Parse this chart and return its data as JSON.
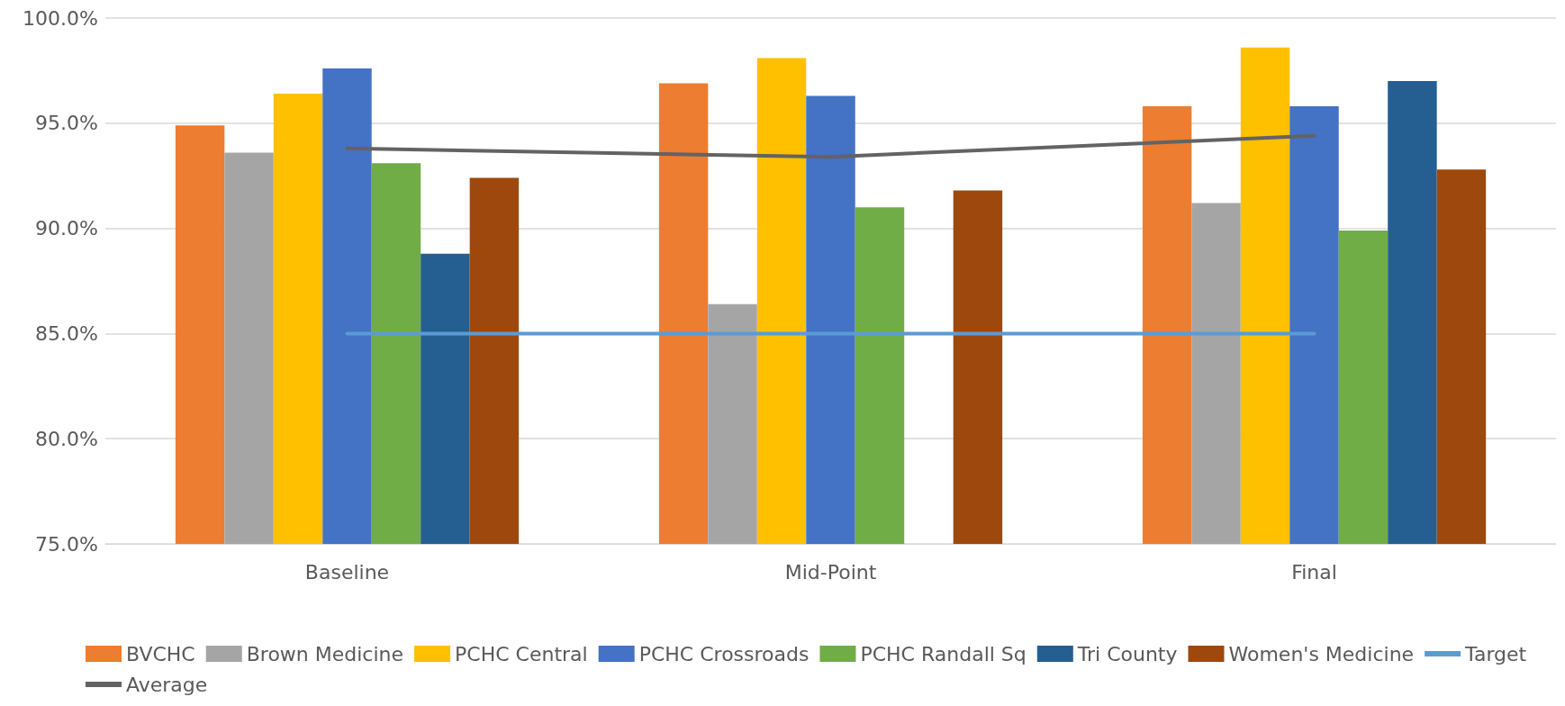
{
  "chart_data": {
    "type": "bar",
    "categories": [
      "Baseline",
      "Mid-Point",
      "Final"
    ],
    "series": [
      {
        "name": "BVCHC",
        "color": "#ed7d31",
        "values": [
          94.9,
          96.9,
          95.8
        ]
      },
      {
        "name": "Brown Medicine",
        "color": "#a5a5a5",
        "values": [
          93.6,
          86.4,
          91.2
        ]
      },
      {
        "name": "PCHC Central",
        "color": "#ffc000",
        "values": [
          96.4,
          98.1,
          98.6
        ]
      },
      {
        "name": "PCHC Crossroads",
        "color": "#4472c4",
        "values": [
          97.6,
          96.3,
          95.8
        ]
      },
      {
        "name": "PCHC Randall Sq",
        "color": "#70ad47",
        "values": [
          93.1,
          91.0,
          89.9
        ]
      },
      {
        "name": "Tri County",
        "color": "#255e91",
        "values": [
          88.8,
          null,
          97.0
        ]
      },
      {
        "name": "Women's Medicine",
        "color": "#9e480e",
        "values": [
          92.4,
          91.8,
          92.8
        ]
      },
      {
        "name": "Target",
        "type": "line",
        "color": "#5b9bd5",
        "values": [
          85,
          85,
          85
        ]
      },
      {
        "name": "Average",
        "type": "line",
        "color": "#636363",
        "values": [
          93.8,
          93.4,
          94.4
        ]
      }
    ],
    "ylim": [
      75,
      100
    ],
    "yticks": [
      {
        "value": 75,
        "label": "75.0%"
      },
      {
        "value": 80,
        "label": "80.0%"
      },
      {
        "value": 85,
        "label": "85.0%"
      },
      {
        "value": 90,
        "label": "90.0%"
      },
      {
        "value": 95,
        "label": "95.0%"
      },
      {
        "value": 100,
        "label": "100.0%"
      }
    ],
    "grid": "y",
    "legend": "bottom",
    "marker": "none"
  }
}
